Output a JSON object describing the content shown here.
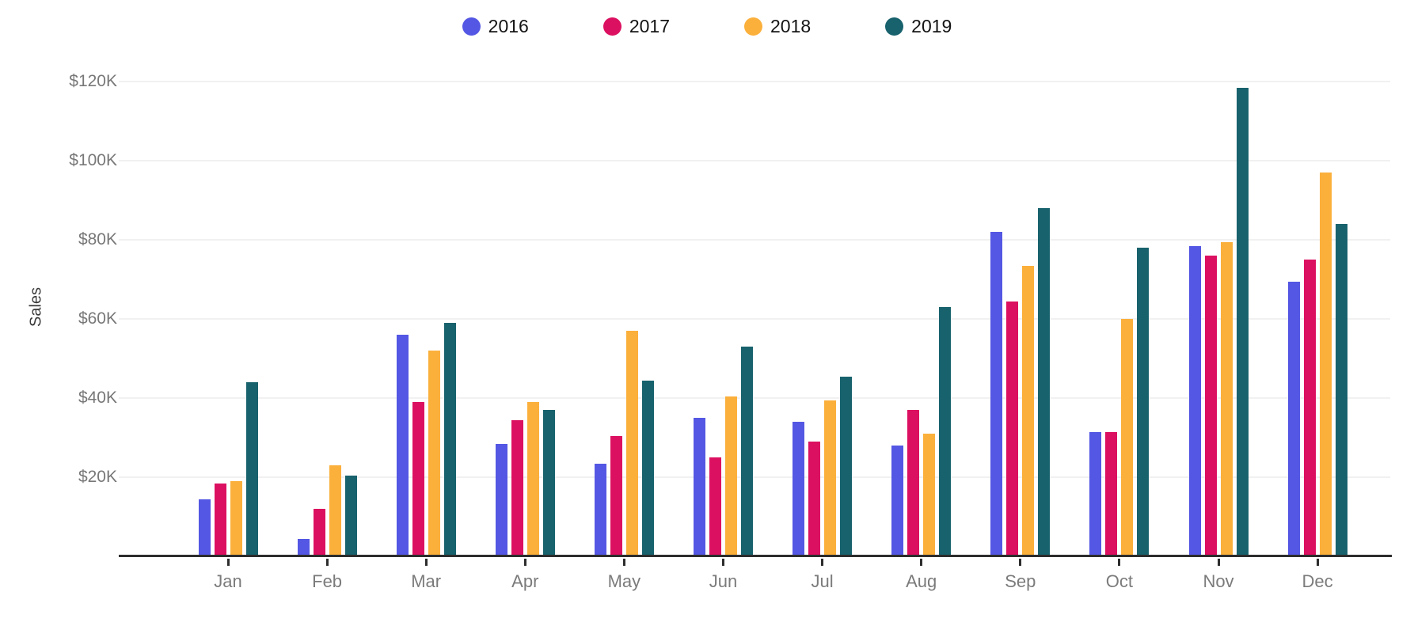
{
  "chart_data": {
    "type": "bar",
    "title": "",
    "xlabel": "",
    "ylabel": "Sales",
    "unit": "USD thousands",
    "categories": [
      "Jan",
      "Feb",
      "Mar",
      "Apr",
      "May",
      "Jun",
      "Jul",
      "Aug",
      "Sep",
      "Oct",
      "Nov",
      "Dec"
    ],
    "series": [
      {
        "name": "2016",
        "color": "#5457e3",
        "values": [
          14.5,
          4.5,
          56,
          28.5,
          23.5,
          35,
          34,
          28,
          82,
          31.5,
          78.5,
          69.5
        ]
      },
      {
        "name": "2017",
        "color": "#dc1060",
        "values": [
          18.5,
          12,
          39,
          34.5,
          30.5,
          25,
          29,
          37,
          64.5,
          31.5,
          76,
          75
        ]
      },
      {
        "name": "2018",
        "color": "#fbb03c",
        "values": [
          19,
          23,
          52,
          39,
          57,
          40.5,
          39.5,
          31,
          73.5,
          60,
          79.5,
          97
        ]
      },
      {
        "name": "2019",
        "color": "#18626d",
        "values": [
          44,
          20.5,
          59,
          37,
          44.5,
          53,
          45.5,
          63,
          88,
          78,
          118.5,
          84
        ]
      }
    ],
    "y_ticks": [
      {
        "label": "$20K",
        "value": 20
      },
      {
        "label": "$40K",
        "value": 40
      },
      {
        "label": "$60K",
        "value": 60
      },
      {
        "label": "$80K",
        "value": 80
      },
      {
        "label": "$100K",
        "value": 100
      },
      {
        "label": "$120K",
        "value": 120
      }
    ],
    "ylim": [
      0,
      140
    ],
    "grid": "horizontal",
    "legend_position": "top-center"
  }
}
